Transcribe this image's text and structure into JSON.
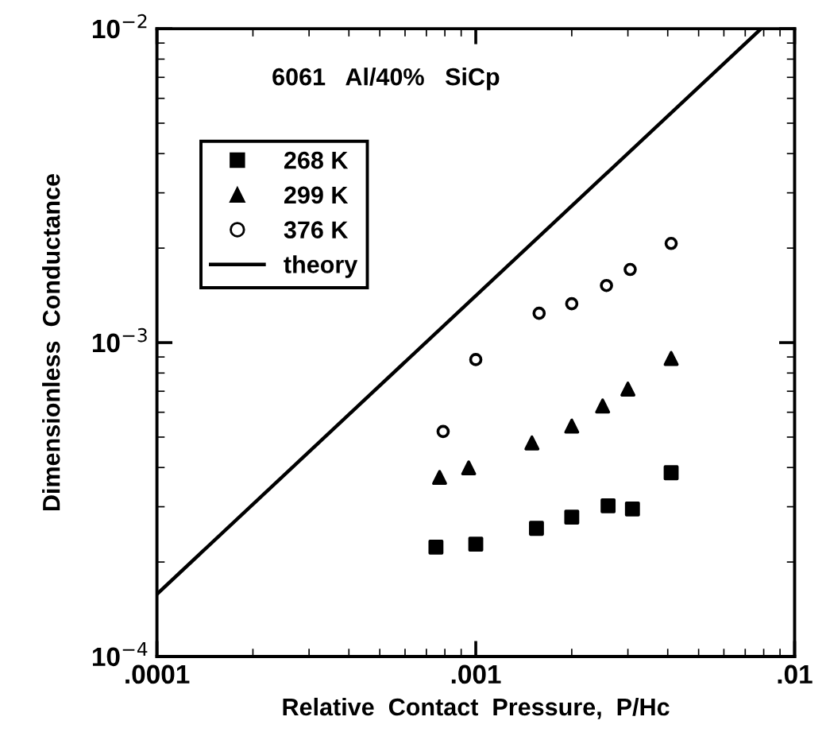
{
  "chart_data": {
    "type": "scatter",
    "xlabel": "Relative  Contact  Pressure,  P/Hc",
    "ylabel": "Dimensionless  Conductance",
    "annotations": [
      "6061   Al/40%   SiCp"
    ],
    "log": "xy",
    "xlim": [
      0.0001,
      0.01
    ],
    "ylim": [
      0.0001,
      0.01
    ],
    "xticks": [
      {
        "value": 0.0001,
        "label": ".0001"
      },
      {
        "value": 0.001,
        "label": ".001"
      },
      {
        "value": 0.01,
        "label": ".01"
      }
    ],
    "yticks": [
      {
        "value": 0.0001,
        "label": "10$^{−4}$"
      },
      {
        "value": 0.001,
        "label": "10$^{−3}$"
      },
      {
        "value": 0.01,
        "label": "10$^{−2}$"
      }
    ],
    "grid": false,
    "legend": "top left",
    "series": [
      {
        "name": "268 K",
        "color": "#000000",
        "marker": "square",
        "x": [
          0.00075,
          0.001,
          0.00155,
          0.002,
          0.0026,
          0.0031,
          0.0041
        ],
        "values": [
          0.000223,
          0.000228,
          0.000256,
          0.000278,
          0.000302,
          0.000295,
          0.000385
        ]
      },
      {
        "name": "299 K",
        "color": "#000000",
        "marker": "triangle",
        "x": [
          0.00077,
          0.00095,
          0.0015,
          0.002,
          0.0025,
          0.003,
          0.0041
        ],
        "values": [
          0.000372,
          0.000399,
          0.000479,
          0.000542,
          0.000628,
          0.000711,
          0.00089
        ]
      },
      {
        "name": "376 K",
        "color": "#000000",
        "marker": "circle",
        "x": [
          0.00079,
          0.001,
          0.00158,
          0.002,
          0.00257,
          0.00305,
          0.0041
        ],
        "values": [
          0.000521,
          0.000883,
          0.00124,
          0.00133,
          0.00152,
          0.00171,
          0.00207
        ]
      },
      {
        "name": "theory",
        "type": "line",
        "color": "#000000",
        "marker": "none",
        "line_style": "solid",
        "x": [
          0.0001,
          0.00785
        ],
        "values": [
          0.000158,
          0.01
        ]
      }
    ]
  }
}
